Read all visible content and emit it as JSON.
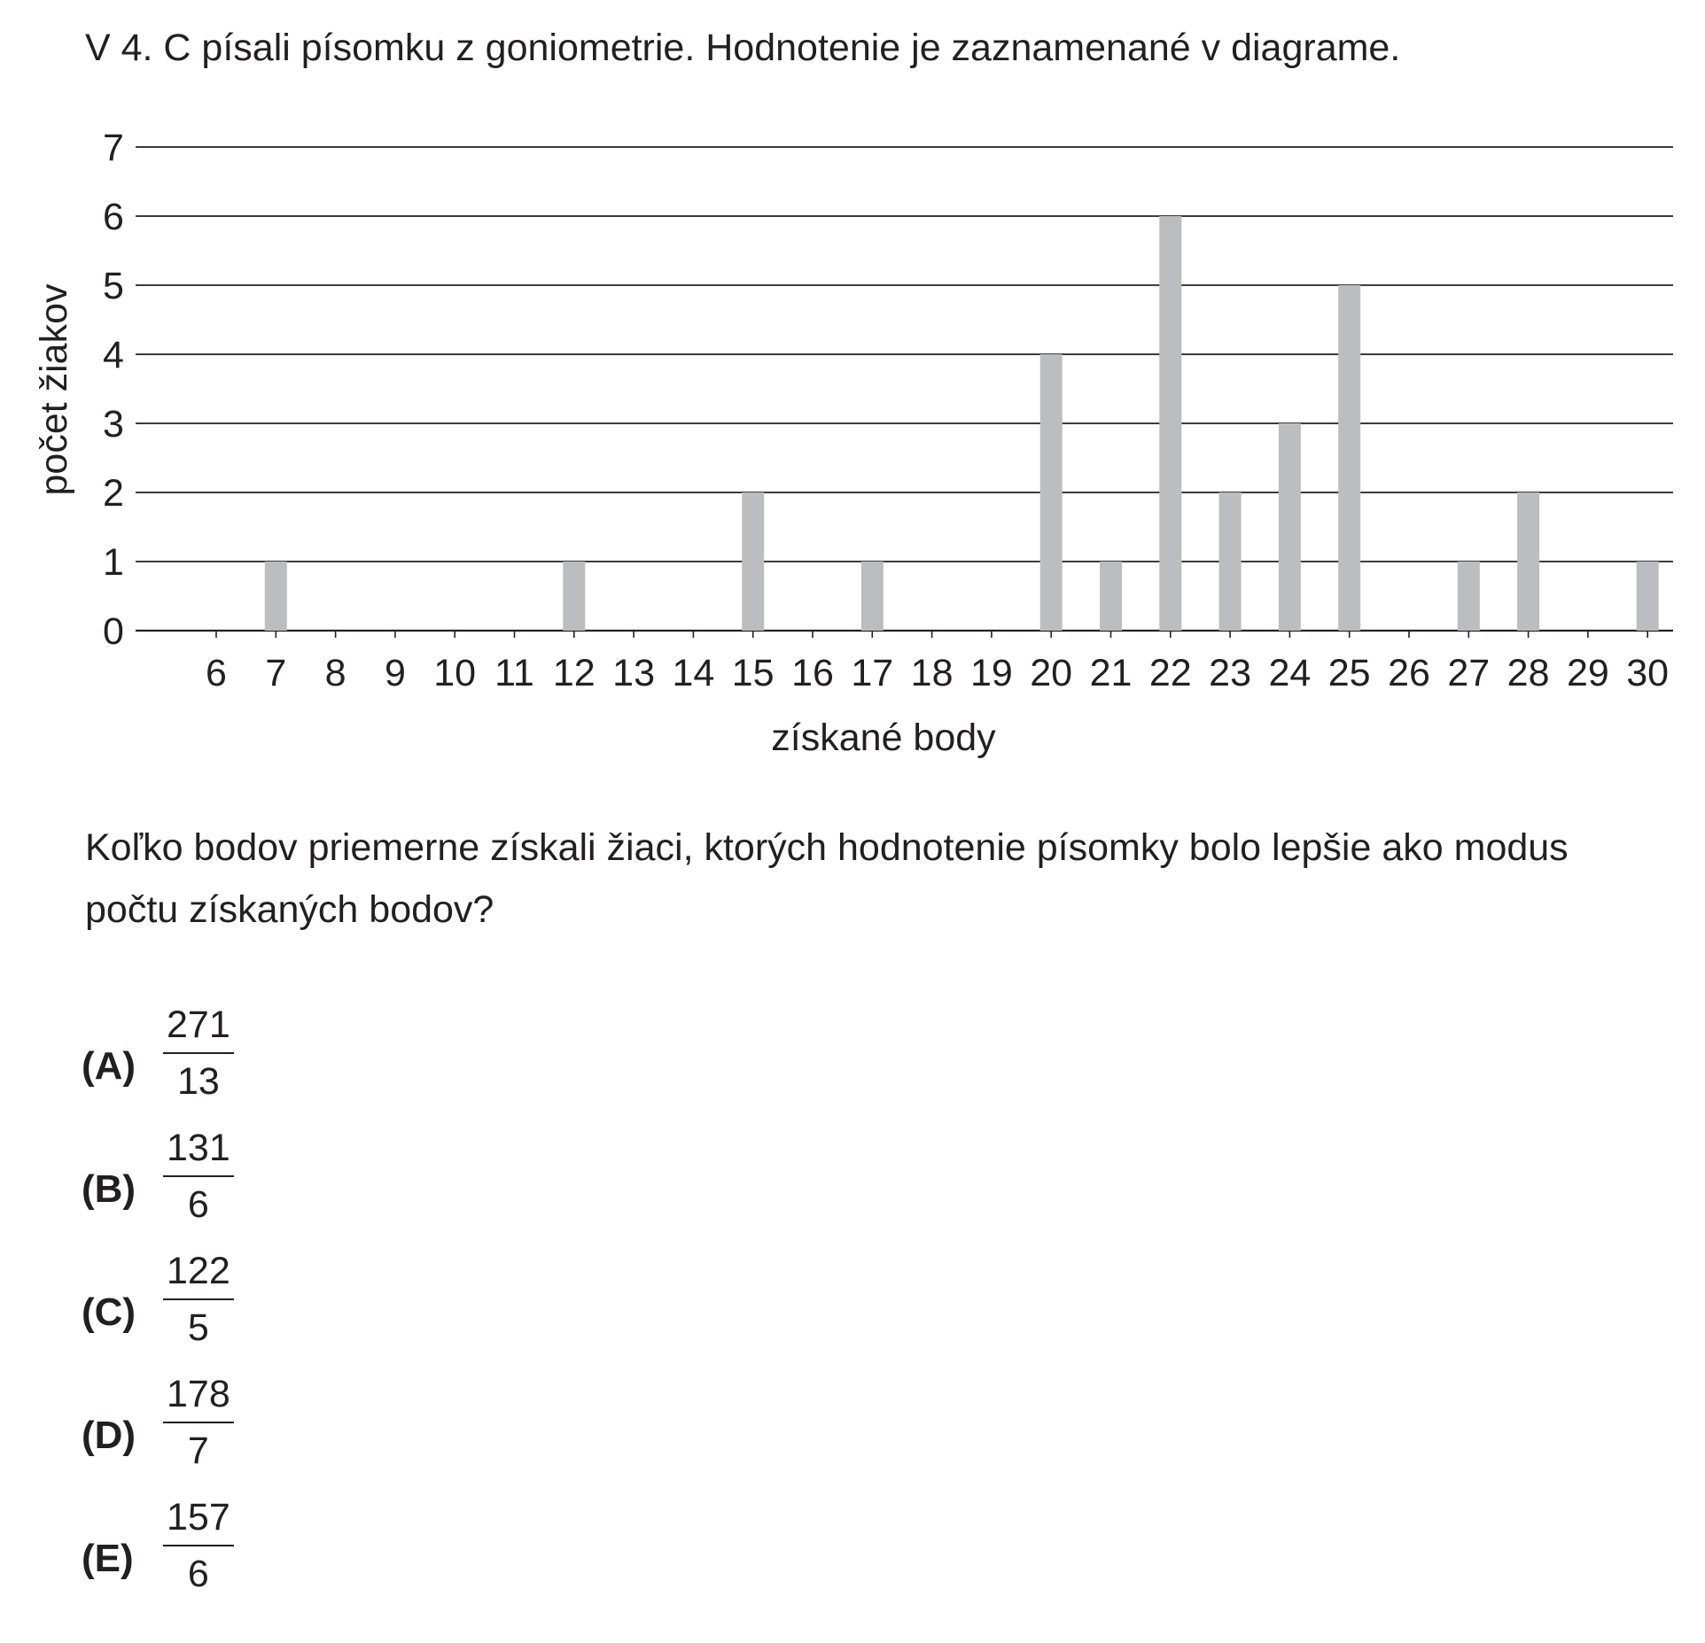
{
  "problem": {
    "intro": "V 4. C písali písomku z goniometrie. Hodnotenie je zaznamenané v diagrame.",
    "question": "Koľko bodov priemerne získali žiaci, ktorých hodnotenie písomky bolo lepšie ako modus počtu získaných bodov?"
  },
  "chart_data": {
    "type": "bar",
    "title": "",
    "xlabel": "získané body",
    "ylabel": "počet žiakov",
    "categories": [
      "6",
      "7",
      "8",
      "9",
      "10",
      "11",
      "12",
      "13",
      "14",
      "15",
      "16",
      "17",
      "18",
      "19",
      "20",
      "21",
      "22",
      "23",
      "24",
      "25",
      "26",
      "27",
      "28",
      "29",
      "30"
    ],
    "values": [
      0,
      1,
      0,
      0,
      0,
      0,
      1,
      0,
      0,
      2,
      0,
      1,
      0,
      0,
      4,
      1,
      6,
      2,
      3,
      5,
      0,
      1,
      2,
      0,
      1
    ],
    "yticks": [
      0,
      1,
      2,
      3,
      4,
      5,
      6,
      7
    ],
    "ylim": [
      0,
      7
    ],
    "grid": "horizontal",
    "bar_color": "#bcbdc0",
    "grid_color": "#231f20"
  },
  "options": [
    {
      "letter": "(A)",
      "numerator": "271",
      "denominator": "13"
    },
    {
      "letter": "(B)",
      "numerator": "131",
      "denominator": "6"
    },
    {
      "letter": "(C)",
      "numerator": "122",
      "denominator": "5"
    },
    {
      "letter": "(D)",
      "numerator": "178",
      "denominator": "7"
    },
    {
      "letter": "(E)",
      "numerator": "157",
      "denominator": "6"
    }
  ]
}
